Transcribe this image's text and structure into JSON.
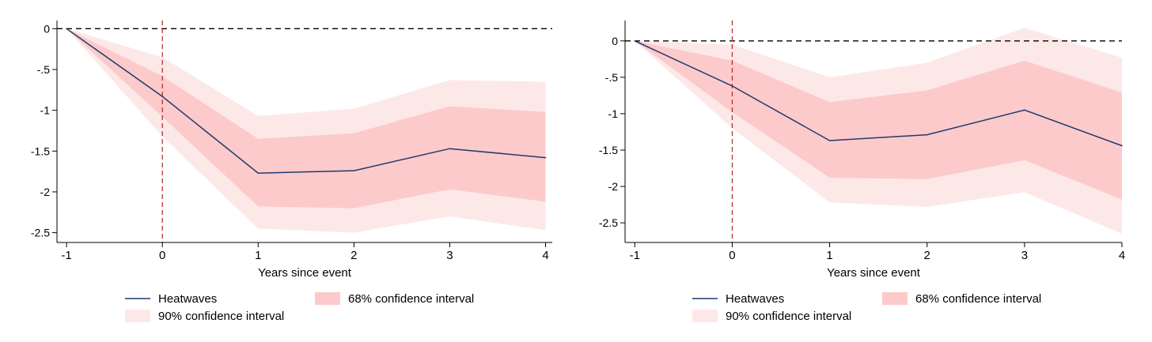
{
  "colors": {
    "line": "#1f3a6e",
    "ci68": "#fdcacb",
    "ci90": "#fde8e8",
    "zero_line": "#000000",
    "event_line": "#b22222"
  },
  "chart_data": [
    {
      "type": "line",
      "xlabel": "Years since event",
      "ylabel": "",
      "x": [
        -1,
        0,
        1,
        2,
        3,
        4
      ],
      "xticks": [
        -1,
        0,
        1,
        2,
        3,
        4
      ],
      "yticks": [
        0,
        -0.5,
        -1,
        -1.5,
        -2,
        -2.5
      ],
      "ytick_labels": [
        "0",
        "-.5",
        "-1",
        "-1.5",
        "-2",
        "-2.5"
      ],
      "xlim": [
        -1.1,
        4.07
      ],
      "ylim": [
        -2.62,
        0.1
      ],
      "event_line_x": 0,
      "reference_line_y": 0,
      "series": [
        {
          "name": "Heatwaves",
          "values": [
            0,
            -0.83,
            -1.77,
            -1.74,
            -1.47,
            -1.58
          ]
        }
      ],
      "bands": [
        {
          "name": "90% confidence interval",
          "lower": [
            0,
            -1.32,
            -2.45,
            -2.5,
            -2.3,
            -2.47
          ],
          "upper": [
            0,
            -0.35,
            -1.07,
            -0.98,
            -0.63,
            -0.65
          ]
        },
        {
          "name": "68% confidence interval",
          "lower": [
            0,
            -1.08,
            -2.18,
            -2.2,
            -1.97,
            -2.12
          ],
          "upper": [
            0,
            -0.58,
            -1.35,
            -1.28,
            -0.95,
            -1.02
          ]
        }
      ],
      "legend": {
        "line_label": "Heatwaves",
        "ci68_label": "68% confidence interval",
        "ci90_label": "90% confidence interval",
        "placement": "bottom"
      }
    },
    {
      "type": "line",
      "xlabel": "Years since event",
      "ylabel": "",
      "x": [
        -1,
        0,
        1,
        2,
        3,
        4
      ],
      "xticks": [
        -1,
        0,
        1,
        2,
        3,
        4
      ],
      "yticks": [
        0,
        -0.5,
        -1,
        -1.5,
        -2,
        -2.5
      ],
      "ytick_labels": [
        "0",
        "-.5",
        "-1",
        "-1.5",
        "-2",
        "-2.5"
      ],
      "xlim": [
        -1.1,
        4.0
      ],
      "ylim": [
        -2.77,
        0.28
      ],
      "event_line_x": 0,
      "reference_line_y": 0,
      "series": [
        {
          "name": "Heatwaves",
          "values": [
            0,
            -0.62,
            -1.37,
            -1.29,
            -0.95,
            -1.44
          ]
        }
      ],
      "bands": [
        {
          "name": "90% confidence interval",
          "lower": [
            0,
            -1.2,
            -2.22,
            -2.28,
            -2.08,
            -2.65
          ],
          "upper": [
            0,
            -0.05,
            -0.5,
            -0.3,
            0.18,
            -0.23
          ]
        },
        {
          "name": "68% confidence interval",
          "lower": [
            0,
            -0.98,
            -1.88,
            -1.9,
            -1.64,
            -2.18
          ],
          "upper": [
            0,
            -0.27,
            -0.84,
            -0.68,
            -0.27,
            -0.71
          ]
        }
      ],
      "legend": {
        "line_label": "Heatwaves",
        "ci68_label": "68% confidence interval",
        "ci90_label": "90% confidence interval",
        "placement": "bottom"
      }
    }
  ]
}
